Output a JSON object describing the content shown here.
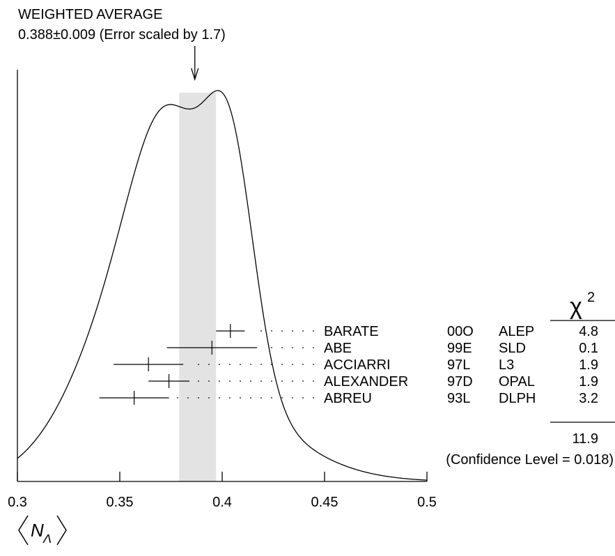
{
  "chart_data": {
    "type": "ideogram",
    "title": "WEIGHTED AVERAGE",
    "subtitle": "0.388±0.009 (Error scaled by 1.7)",
    "weighted_average": {
      "value": 0.388,
      "error": 0.009
    },
    "xlabel": "⟨NΛ⟩",
    "xlabel_main": "N",
    "xlabel_sub": "Λ",
    "xlim": [
      0.3,
      0.5
    ],
    "xticks": [
      "0.3",
      "0.35",
      "0.4",
      "0.45",
      "0.5"
    ],
    "chi2_header": "χ",
    "chi2_exponent": "2",
    "measurements": [
      {
        "author": "BARATE",
        "year": "00O",
        "experiment": "ALEP",
        "value": 0.404,
        "error": 0.007,
        "chi2": "4.8"
      },
      {
        "author": "ABE",
        "year": "99E",
        "experiment": "SLD",
        "value": 0.395,
        "error": 0.022,
        "chi2": "0.1"
      },
      {
        "author": "ACCIARRI",
        "year": "97L",
        "experiment": "L3",
        "value": 0.364,
        "error": 0.017,
        "chi2": "1.9"
      },
      {
        "author": "ALEXANDER",
        "year": "97D",
        "experiment": "OPAL",
        "value": 0.374,
        "error": 0.01,
        "chi2": "1.9"
      },
      {
        "author": "ABREU",
        "year": "93L",
        "experiment": "DLPH",
        "value": 0.357,
        "error": 0.017,
        "chi2": "3.2"
      }
    ],
    "chi2_total": "11.9",
    "confidence_level": "(Confidence Level = 0.018)",
    "band_color": "#e3e3e3"
  }
}
